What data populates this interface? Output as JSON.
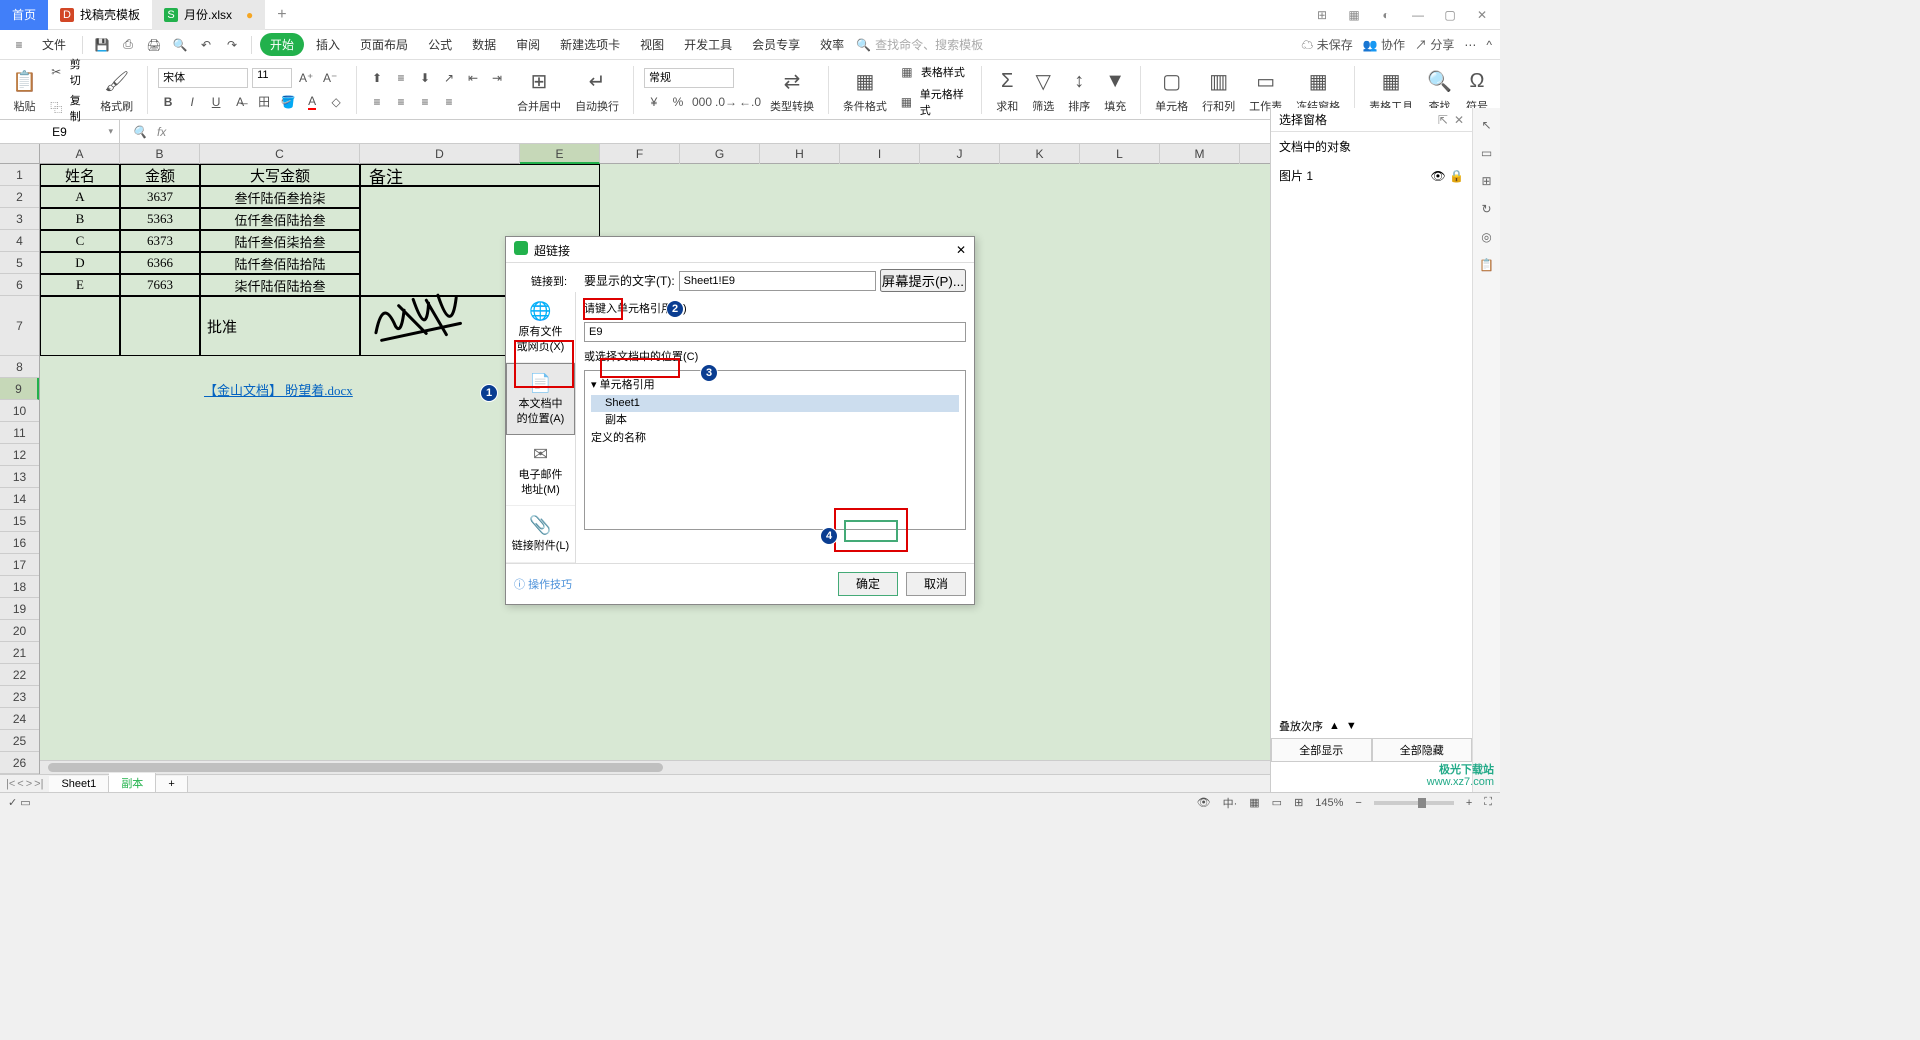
{
  "titlebar": {
    "home": "首页",
    "tab1": "找稿壳模板",
    "tab2": "月份.xlsx",
    "modified": "●"
  },
  "menubar": {
    "file": "文件",
    "items": [
      "开始",
      "插入",
      "页面布局",
      "公式",
      "数据",
      "审阅",
      "新建选项卡",
      "视图",
      "开发工具",
      "会员专享",
      "效率"
    ],
    "searchPlaceholder": "查找命令、搜索模板",
    "right": {
      "unsync": "未保存",
      "coop": "协作",
      "share": "分享"
    }
  },
  "ribbon": {
    "paste": "粘贴",
    "cut": "剪切",
    "copy": "复制",
    "fmtpaint": "格式刷",
    "font": "宋体",
    "fontsize": "11",
    "mergeCenter": "合并居中",
    "wrap": "自动换行",
    "general": "常规",
    "typeConv": "类型转换",
    "condFmt": "条件格式",
    "tableStyle": "表格样式",
    "cellStyle": "单元格样式",
    "sum": "求和",
    "filter": "筛选",
    "sort": "排序",
    "fill": "填充",
    "cell": "单元格",
    "rowcol": "行和列",
    "sheet": "工作表",
    "freeze": "冻结窗格",
    "tableTool": "表格工具",
    "find": "查找",
    "symbol": "符号"
  },
  "namebar": {
    "name": "E9",
    "fx": "fx"
  },
  "columns": {
    "labels": [
      "A",
      "B",
      "C",
      "D",
      "E",
      "F",
      "G",
      "H",
      "I",
      "J",
      "K",
      "L",
      "M"
    ],
    "widths": [
      80,
      80,
      160,
      160,
      80,
      80,
      80,
      80,
      80,
      80,
      80,
      80,
      80
    ],
    "selected": "E"
  },
  "rows": {
    "heights": [
      22,
      22,
      22,
      22,
      22,
      22,
      60,
      22,
      22,
      22,
      22,
      22,
      22,
      22,
      22,
      22,
      22,
      22,
      22,
      22,
      22,
      22,
      22,
      22,
      22,
      22,
      22
    ],
    "selected": 9
  },
  "table": {
    "headers": [
      "姓名",
      "金额",
      "大写金额"
    ],
    "noteHeader": "备注",
    "data": [
      {
        "name": "A",
        "amount": "3637",
        "cn": "叁仟陆佰叁拾柒"
      },
      {
        "name": "B",
        "amount": "5363",
        "cn": "伍仟叁佰陆拾叁"
      },
      {
        "name": "C",
        "amount": "6373",
        "cn": "陆仟叁佰柒拾叁"
      },
      {
        "name": "D",
        "amount": "6366",
        "cn": "陆仟叁佰陆拾陆"
      },
      {
        "name": "E",
        "amount": "7663",
        "cn": "柒仟陆佰陆拾叁"
      }
    ],
    "approve": "批准",
    "link": "【金山文档】 盼望着.docx"
  },
  "dialog": {
    "title": "超链接",
    "linkTo": "链接到:",
    "displayLabel": "要显示的文字(T):",
    "displayValue": "Sheet1!E9",
    "screenTip": "屏幕提示(P)...",
    "cellRefLabel": "请键入单元格引用(E)",
    "cellRefValue": "E9",
    "selectLoc": "或选择文档中的位置(C)",
    "treeRoot": "单元格引用",
    "treeItems": [
      "Sheet1",
      "副本"
    ],
    "definedNames": "定义的名称",
    "tip": "操作技巧",
    "ok": "确定",
    "cancel": "取消",
    "side": {
      "existing": "原有文件\n或网页(X)",
      "place": "本文档中\n的位置(A)",
      "email": "电子邮件\n地址(M)",
      "attach": "链接附件(L)"
    }
  },
  "sidepanel": {
    "title": "选择窗格",
    "objLabel": "文档中的对象",
    "obj1": "图片 1",
    "order": "叠放次序",
    "showAll": "全部显示",
    "hideAll": "全部隐藏"
  },
  "sheetbar": {
    "s1": "Sheet1",
    "s2": "副本"
  },
  "statusbar": {
    "zoom": "145%"
  },
  "annotations": {
    "a1": "1",
    "a2": "2",
    "a3": "3",
    "a4": "4"
  },
  "watermark": {
    "l1": "极光下载站",
    "l2": "www.xz7.com"
  }
}
